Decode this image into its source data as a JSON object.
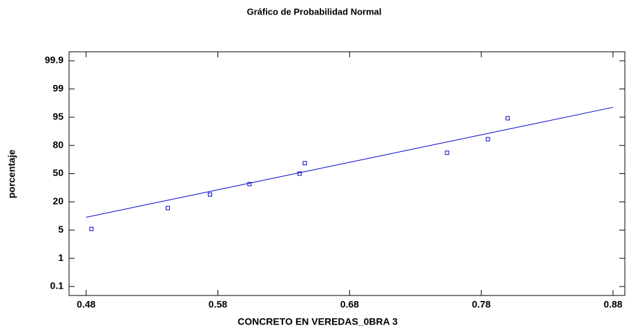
{
  "chart_data": {
    "type": "scatter",
    "title": "Gráfico de Probabilidad Normal",
    "x_label": "CONCRETO EN VEREDAS_0BRA 3",
    "y_label": "porcentaje",
    "yscale": "probability",
    "series": [
      {
        "name": "CONCRETO EN VEREDAS_0BRA 3",
        "color": "#0000cc",
        "x": [
          0.484,
          0.542,
          0.574,
          0.604,
          0.642,
          0.646,
          0.754,
          0.785,
          0.8
        ],
        "values": [
          5.6,
          16.7,
          27.8,
          38.9,
          50,
          61.1,
          72.2,
          83.3,
          94.4
        ]
      }
    ],
    "fit_line": {
      "color": "#0000cc",
      "x": [
        0.48,
        0.88
      ],
      "y": [
        11.8,
        96.4
      ]
    },
    "xlim": [
      0.467,
      0.889
    ],
    "xticks": [
      0.48,
      0.58,
      0.68,
      0.78,
      0.88
    ],
    "ylim": [
      0.1,
      99.9
    ],
    "yticks": [
      0.1,
      1,
      5,
      20,
      50,
      80,
      95,
      99,
      99.9
    ]
  }
}
